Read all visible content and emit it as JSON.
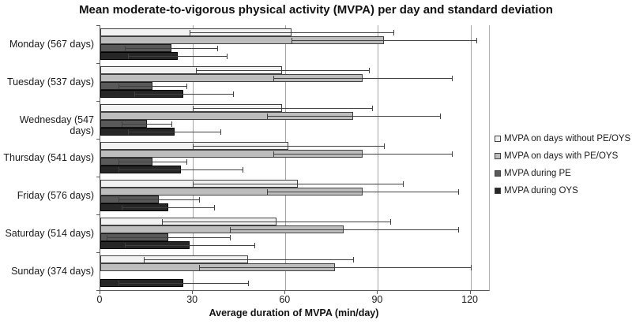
{
  "title": "Mean moderate-to-vigorous physical activity (MVPA) per day and standard deviation",
  "chart_data": {
    "type": "bar",
    "orientation": "horizontal",
    "title": "Mean moderate-to-vigorous physical activity (MVPA) per day and standard deviation",
    "xlabel": "Average duration of MVPA (min/day)",
    "categories": [
      "Monday (567 days)",
      "Tuesday (537 days)",
      "Wednesday (547 days)",
      "Thursday (541 days)",
      "Friday (576 days)",
      "Saturday (514 days)",
      "Sunday (374 days)"
    ],
    "series": [
      {
        "name": "MVPA on days without PE/OYS",
        "color": "#f2f2f2",
        "border": "#404040",
        "values": [
          62,
          59,
          59,
          61,
          64,
          57,
          48
        ],
        "sd": [
          33,
          28,
          29,
          31,
          34,
          37,
          34
        ]
      },
      {
        "name": "MVPA on days with PE/OYS",
        "color": "#bdbdbd",
        "border": "#404040",
        "values": [
          92,
          85,
          82,
          85,
          85,
          79,
          76
        ],
        "sd": [
          30,
          29,
          28,
          29,
          31,
          37,
          44
        ]
      },
      {
        "name": "MVPA during PE",
        "color": "#595959",
        "border": "#1a1a1a",
        "values": [
          23,
          17,
          15,
          17,
          19,
          22,
          null
        ],
        "sd": [
          15,
          11,
          8,
          11,
          13,
          20,
          null
        ]
      },
      {
        "name": "MVPA during OYS",
        "color": "#262626",
        "border": "#000000",
        "values": [
          25,
          27,
          24,
          26,
          22,
          29,
          27
        ],
        "sd": [
          16,
          16,
          15,
          20,
          15,
          21,
          21
        ]
      }
    ],
    "x_ticks": [
      0,
      30,
      60,
      90,
      120
    ],
    "xlim": [
      0,
      126
    ],
    "grid": true,
    "legend_position": "right",
    "error_bars": "standard deviation"
  }
}
